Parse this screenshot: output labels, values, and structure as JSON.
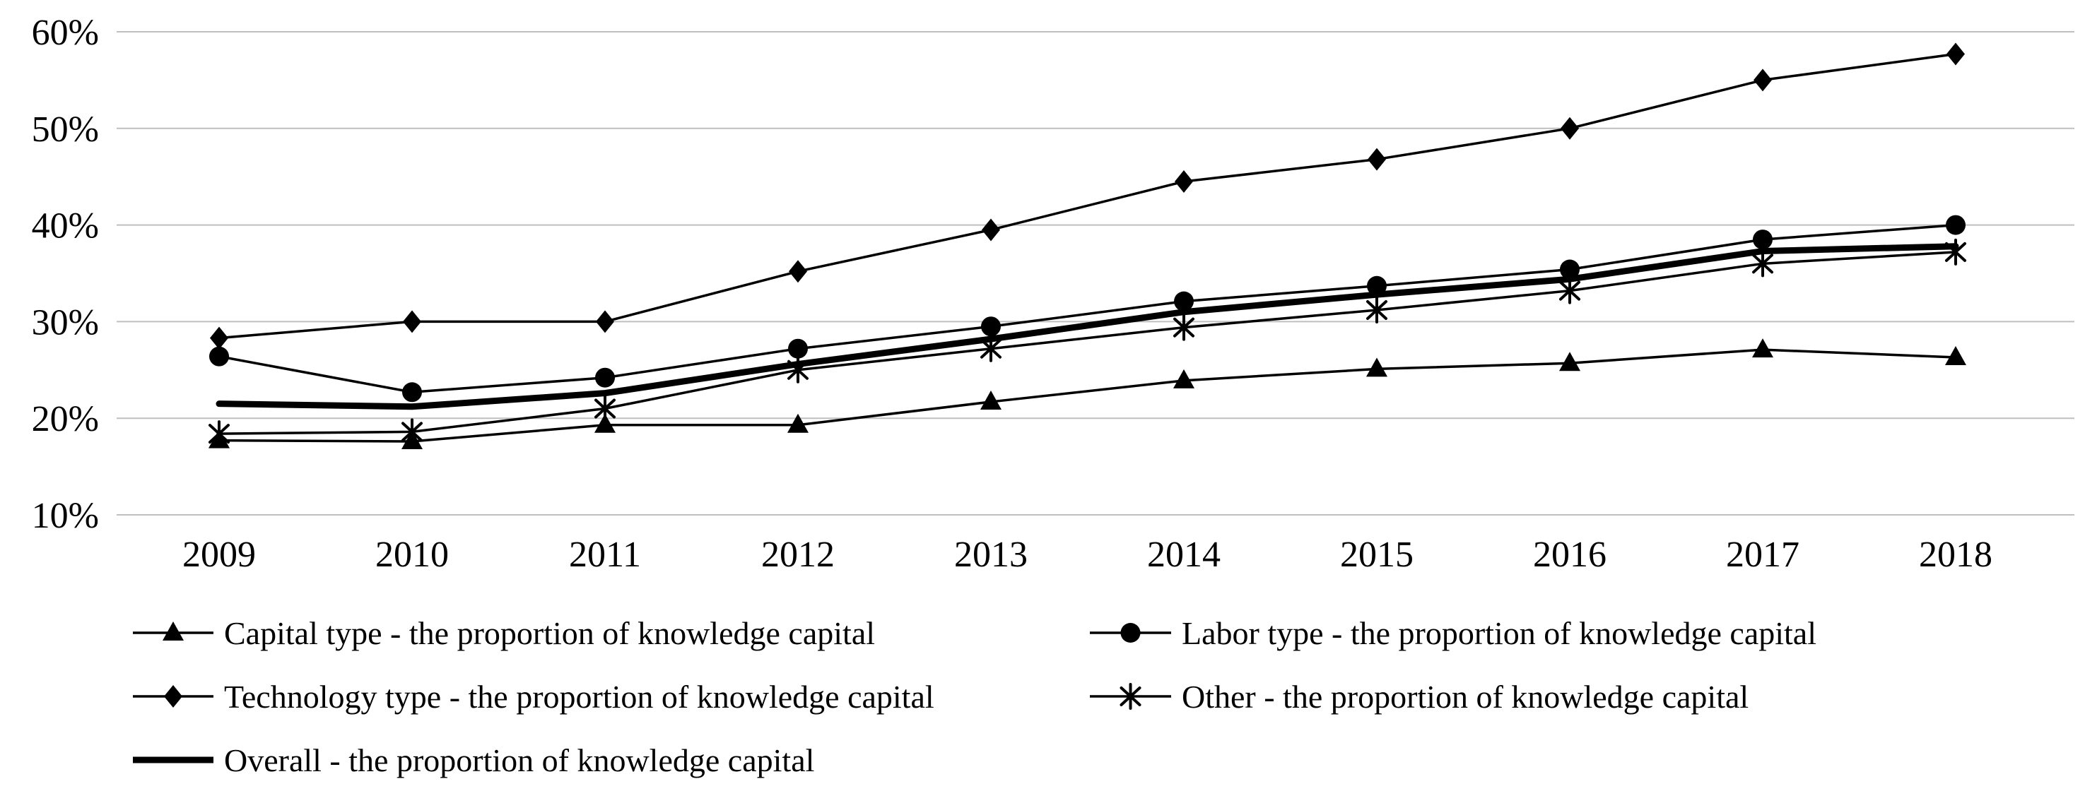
{
  "chart_data": {
    "type": "line",
    "title": "",
    "xlabel": "",
    "ylabel": "",
    "x_categories": [
      "2009",
      "2010",
      "2011",
      "2012",
      "2013",
      "2014",
      "2015",
      "2016",
      "2017",
      "2018"
    ],
    "y_ticks": [
      {
        "value": 10,
        "label": "10%"
      },
      {
        "value": 20,
        "label": "20%"
      },
      {
        "value": 30,
        "label": "30%"
      },
      {
        "value": 40,
        "label": "40%"
      },
      {
        "value": 50,
        "label": "50%"
      },
      {
        "value": 60,
        "label": "60%"
      }
    ],
    "ylim": [
      10,
      60
    ],
    "grid": "horizontal",
    "legend_position": "bottom-two-columns",
    "series": [
      {
        "name": "Capital type - the proportion of knowledge capital",
        "marker": "triangle",
        "line": "thin",
        "legend": {
          "row": 0,
          "col": 0
        },
        "values": [
          17.7,
          17.6,
          19.3,
          19.3,
          21.7,
          23.9,
          25.1,
          25.7,
          27.1,
          26.3
        ]
      },
      {
        "name": "Labor type - the proportion of knowledge capital",
        "marker": "circle",
        "line": "thin",
        "legend": {
          "row": 0,
          "col": 1
        },
        "values": [
          26.4,
          22.7,
          24.2,
          27.2,
          29.5,
          32.1,
          33.7,
          35.4,
          38.5,
          40.0
        ]
      },
      {
        "name": "Technology type - the proportion of knowledge capital",
        "marker": "diamond",
        "line": "thin",
        "legend": {
          "row": 1,
          "col": 0
        },
        "values": [
          28.3,
          30.0,
          30.0,
          35.2,
          39.5,
          44.5,
          46.8,
          50.0,
          55.0,
          57.7
        ]
      },
      {
        "name": "Other - the proportion of knowledge capital",
        "marker": "asterisk",
        "line": "thin",
        "legend": {
          "row": 1,
          "col": 1
        },
        "values": [
          18.4,
          18.6,
          21.0,
          25.0,
          27.2,
          29.4,
          31.2,
          33.2,
          36.0,
          37.2
        ]
      },
      {
        "name": "Overall - the proportion of knowledge capital",
        "marker": "none",
        "line": "thick",
        "legend": {
          "row": 2,
          "col": 0
        },
        "values": [
          21.5,
          21.2,
          22.6,
          25.6,
          28.2,
          31.0,
          32.8,
          34.4,
          37.3,
          37.8
        ]
      }
    ],
    "colors": {
      "series_line": "#000000",
      "marker_fill": "#000000",
      "grid_line": "#bfbfbf",
      "text": "#000000",
      "background": "#ffffff"
    }
  }
}
